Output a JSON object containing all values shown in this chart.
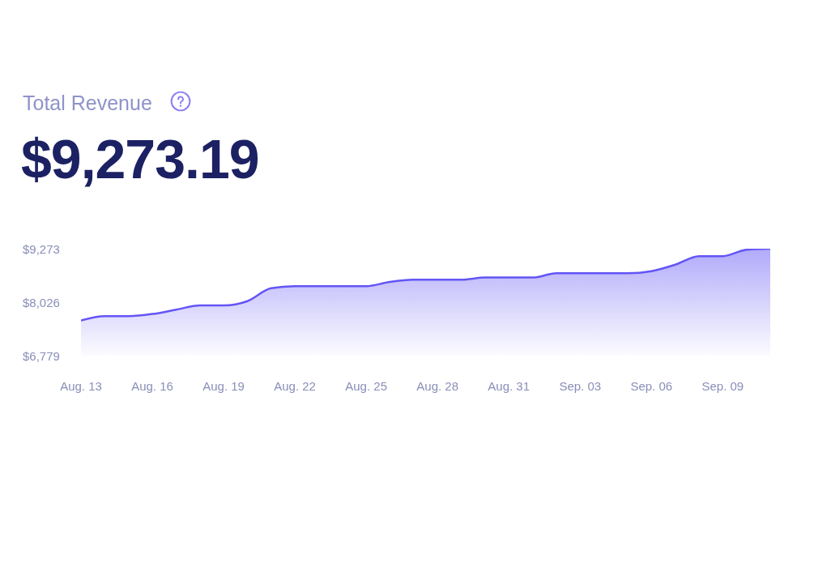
{
  "chart_data": {
    "type": "area",
    "title": "Total Revenue",
    "subtitle": "$9,273.19",
    "categories": [
      "Aug. 13",
      null,
      null,
      "Aug. 16",
      null,
      null,
      "Aug. 19",
      null,
      null,
      "Aug. 22",
      null,
      null,
      "Aug. 25",
      null,
      null,
      "Aug. 28",
      null,
      null,
      "Aug. 31",
      null,
      null,
      "Sep. 03",
      null,
      null,
      "Sep. 06",
      null,
      null,
      "Sep. 09",
      null,
      null
    ],
    "values": [
      7600,
      7700,
      7700,
      7750,
      7850,
      7950,
      7950,
      8050,
      8350,
      8400,
      8400,
      8400,
      8400,
      8500,
      8550,
      8550,
      8550,
      8600,
      8600,
      8600,
      8700,
      8700,
      8700,
      8700,
      8750,
      8900,
      9100,
      9100,
      9250,
      9273
    ],
    "color": "#6355f5",
    "ylim": [
      6779,
      9273
    ],
    "yticks": [
      {
        "value": 6779,
        "label": "$6,779"
      },
      {
        "value": 8026,
        "label": "$8,026"
      },
      {
        "value": 9273,
        "label": "$9,273"
      }
    ]
  }
}
